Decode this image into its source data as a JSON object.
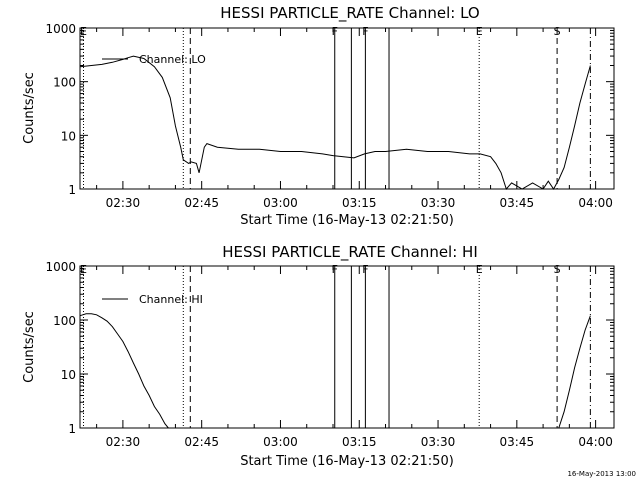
{
  "chart_data": [
    {
      "type": "line",
      "title": "HESSI PARTICLE_RATE Channel: LO",
      "xlabel": "Start Time (16-May-13 02:21:50)",
      "ylabel": "Counts/sec",
      "yscale": "log",
      "xlim": [
        "02:21:50",
        "04:03:30"
      ],
      "ylim": [
        1,
        1000
      ],
      "x_ticks": [
        "02:30",
        "02:45",
        "03:00",
        "03:15",
        "03:30",
        "03:45",
        "04:00"
      ],
      "y_ticks": [
        "1",
        "10",
        "100",
        "1000"
      ],
      "legend": {
        "placement": "top-left",
        "entry": "Channel: LO"
      },
      "markers": [
        {
          "label": "E",
          "time": "02:22:30",
          "style": "dotted"
        },
        {
          "label": "",
          "time": "02:41:30",
          "style": "dotted"
        },
        {
          "label": "",
          "time": "02:42:50",
          "style": "dashed"
        },
        {
          "label": "F",
          "time": "03:10:20",
          "style": "solid"
        },
        {
          "label": "",
          "time": "03:13:30",
          "style": "solid"
        },
        {
          "label": "F",
          "time": "03:16:10",
          "style": "solid"
        },
        {
          "label": "",
          "time": "03:20:40",
          "style": "solid"
        },
        {
          "label": "E",
          "time": "03:37:50",
          "style": "dotted"
        },
        {
          "label": "S",
          "time": "03:52:40",
          "style": "dashed"
        },
        {
          "label": "",
          "time": "03:59:00",
          "style": "dashdot"
        }
      ],
      "series": [
        {
          "name": "Channel: LO",
          "x": [
            "02:21:50",
            "02:24:00",
            "02:26:00",
            "02:28:00",
            "02:30:00",
            "02:31:00",
            "02:32:00",
            "02:34:00",
            "02:36:00",
            "02:37:30",
            "02:39:00",
            "02:40:00",
            "02:41:00",
            "02:41:30",
            "02:42:30",
            "02:43:00",
            "02:44:00",
            "02:44:30",
            "02:45:30",
            "02:46:00",
            "02:48:00",
            "02:52:00",
            "02:56:00",
            "03:00:00",
            "03:04:00",
            "03:08:00",
            "03:10:00",
            "03:12:00",
            "03:14:00",
            "03:16:00",
            "03:18:00",
            "03:20:00",
            "03:24:00",
            "03:28:00",
            "03:32:00",
            "03:36:00",
            "03:38:00",
            "03:40:00",
            "03:41:00",
            "03:42:00",
            "03:43:00",
            "03:44:00",
            "03:46:00",
            "03:48:00",
            "03:50:00",
            "03:51:00",
            "03:52:00",
            "03:53:00",
            "03:54:00",
            "03:55:00",
            "03:56:00",
            "03:57:00",
            "03:58:00",
            "03:59:00"
          ],
          "y": [
            190,
            200,
            210,
            230,
            260,
            280,
            300,
            270,
            190,
            120,
            50,
            15,
            6,
            3.5,
            3,
            3.2,
            3,
            2,
            6,
            7,
            6,
            5.5,
            5.5,
            5,
            5,
            4.5,
            4.2,
            4,
            3.8,
            4.5,
            5,
            5,
            5.5,
            5,
            5,
            4.5,
            4.5,
            4,
            3,
            2,
            1,
            1.3,
            1,
            1.3,
            1,
            1.4,
            1,
            1.5,
            2.5,
            6,
            15,
            40,
            90,
            200
          ]
        }
      ]
    },
    {
      "type": "line",
      "title": "HESSI PARTICLE_RATE Channel: HI",
      "xlabel": "Start Time (16-May-13 02:21:50)",
      "ylabel": "Counts/sec",
      "yscale": "log",
      "xlim": [
        "02:21:50",
        "04:03:30"
      ],
      "ylim": [
        1,
        1000
      ],
      "x_ticks": [
        "02:30",
        "02:45",
        "03:00",
        "03:15",
        "03:30",
        "03:45",
        "04:00"
      ],
      "y_ticks": [
        "1",
        "10",
        "100",
        "1000"
      ],
      "legend": {
        "placement": "top-left",
        "entry": "Channel: HI"
      },
      "markers": [
        {
          "label": "E",
          "time": "02:22:30",
          "style": "dotted"
        },
        {
          "label": "",
          "time": "02:41:30",
          "style": "dotted"
        },
        {
          "label": "",
          "time": "02:42:50",
          "style": "dashed"
        },
        {
          "label": "F",
          "time": "03:10:20",
          "style": "solid"
        },
        {
          "label": "",
          "time": "03:13:30",
          "style": "solid"
        },
        {
          "label": "F",
          "time": "03:16:10",
          "style": "solid"
        },
        {
          "label": "",
          "time": "03:20:40",
          "style": "solid"
        },
        {
          "label": "E",
          "time": "03:37:50",
          "style": "dotted"
        },
        {
          "label": "S",
          "time": "03:52:40",
          "style": "dashed"
        },
        {
          "label": "",
          "time": "03:59:00",
          "style": "dashdot"
        }
      ],
      "series": [
        {
          "name": "Channel: HI",
          "x": [
            "02:21:50",
            "02:23:00",
            "02:24:00",
            "02:25:00",
            "02:26:00",
            "02:27:00",
            "02:28:00",
            "02:29:00",
            "02:30:00",
            "02:31:00",
            "02:32:00",
            "02:33:00",
            "02:34:00",
            "02:35:00",
            "02:36:00",
            "02:37:00",
            "02:38:00",
            "02:38:40",
            "null",
            "03:53:00",
            "03:54:00",
            "03:55:00",
            "03:56:00",
            "03:57:00",
            "03:58:00",
            "03:59:00"
          ],
          "y": [
            120,
            130,
            130,
            125,
            110,
            95,
            75,
            55,
            40,
            26,
            16,
            10,
            6,
            4,
            2.5,
            1.8,
            1.2,
            1,
            null,
            1,
            2,
            5,
            13,
            30,
            65,
            120
          ]
        }
      ]
    }
  ],
  "footer": {
    "stamp": "16-May-2013 13:00"
  }
}
